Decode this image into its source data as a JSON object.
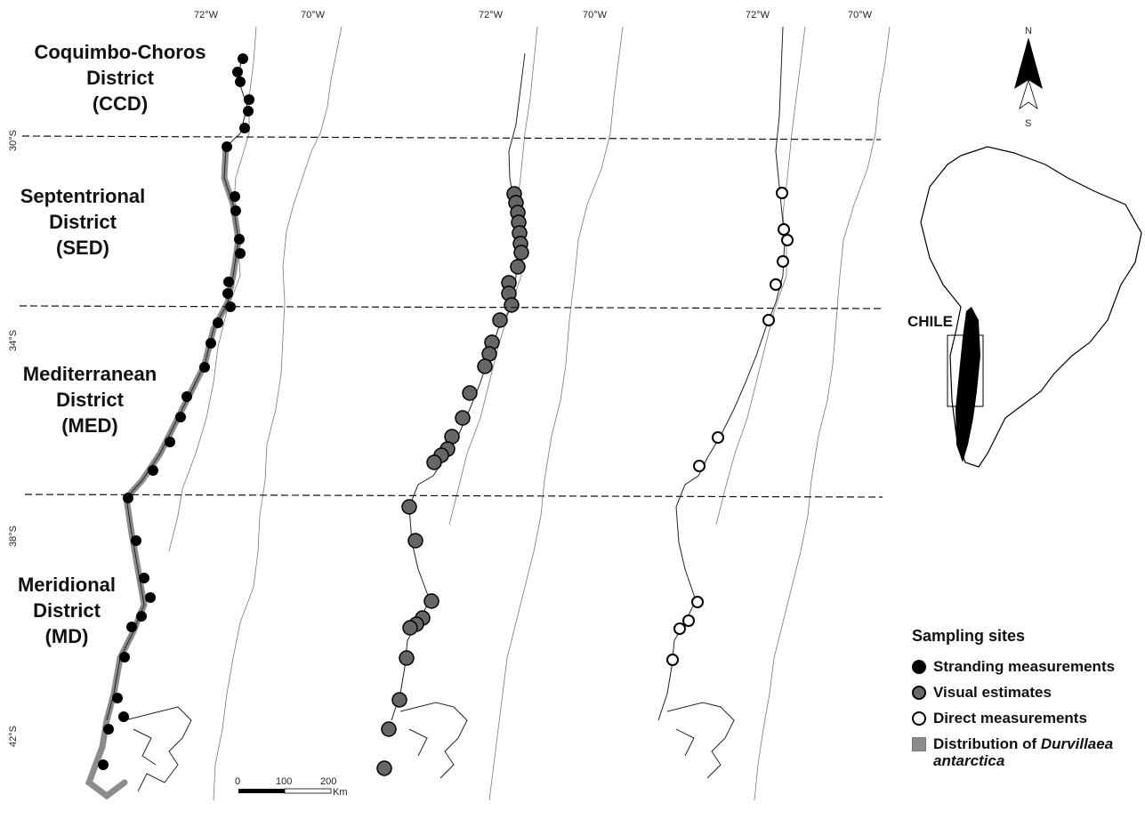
{
  "districts": [
    {
      "lines": [
        "Coquimbo-Choros",
        "District",
        "(CCD)"
      ]
    },
    {
      "lines": [
        "Septentrional",
        "District",
        "(SED)"
      ]
    },
    {
      "lines": [
        "Mediterranean",
        "District",
        "(MED)"
      ]
    },
    {
      "lines": [
        "Meridional",
        "District",
        "(MD)"
      ]
    }
  ],
  "longitude_labels": [
    "72°W",
    "70°W"
  ],
  "latitude_labels": [
    "30°S",
    "34°S",
    "38°S",
    "42°S"
  ],
  "scale_bar": {
    "ticks": [
      "0",
      "100",
      "200"
    ],
    "unit": "Km"
  },
  "north_arrow": {
    "n": "N",
    "s": "S"
  },
  "inset": {
    "country_label": "CHILE"
  },
  "legend": {
    "title": "Sampling sites",
    "items": [
      {
        "label": "Stranding measurements",
        "symbol": "black-circle"
      },
      {
        "label": "Visual estimates",
        "symbol": "gray-circle"
      },
      {
        "label": "Direct measurements",
        "symbol": "white-circle"
      },
      {
        "label": "Distribution of",
        "label_italic": "Durvillaea",
        "label_line2": "antarctica",
        "symbol": "gray-square"
      }
    ]
  },
  "colors": {
    "stranding": "#000000",
    "visual": "#666666",
    "direct": "#ffffff",
    "distribution": "#8c8c8c"
  }
}
